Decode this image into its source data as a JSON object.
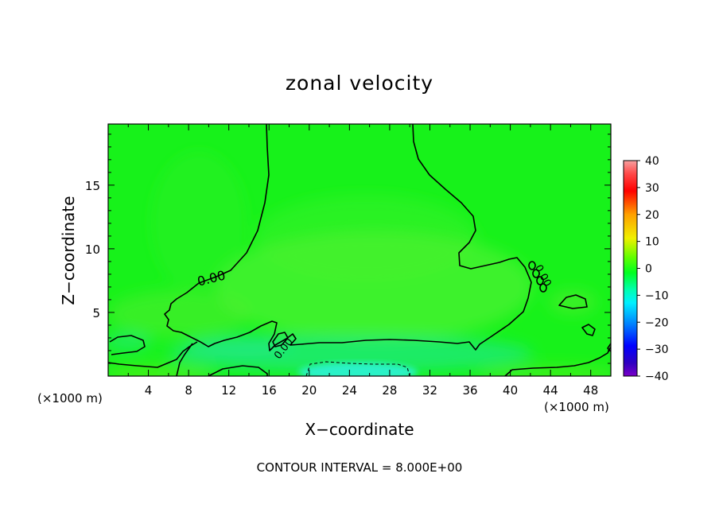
{
  "chart_data": {
    "type": "heatmap",
    "title": "zonal velocity",
    "xlabel": "X−coordinate",
    "ylabel": "Z−coordinate",
    "x_unit_left": "(×1000 m)",
    "x_unit_right": "(×1000 m)",
    "xlim": [
      0,
      50
    ],
    "ylim": [
      0,
      19.8
    ],
    "x_ticks": [
      4,
      8,
      12,
      16,
      20,
      24,
      28,
      32,
      36,
      40,
      44,
      48
    ],
    "y_ticks": [
      5,
      10,
      15
    ],
    "colorbar": {
      "range": [
        -40,
        40
      ],
      "ticks": [
        40,
        30,
        20,
        10,
        0,
        -10,
        -20,
        -30,
        -40
      ]
    },
    "contour_label": "0.00",
    "footer": "CONTOUR INTERVAL = 8.000E+00",
    "colors": {
      "field_base": "#17f21a",
      "positive_tint": "#5cf23a",
      "negative_tint": "#22e6a2",
      "strong_negative": "#2ef2d6"
    }
  }
}
